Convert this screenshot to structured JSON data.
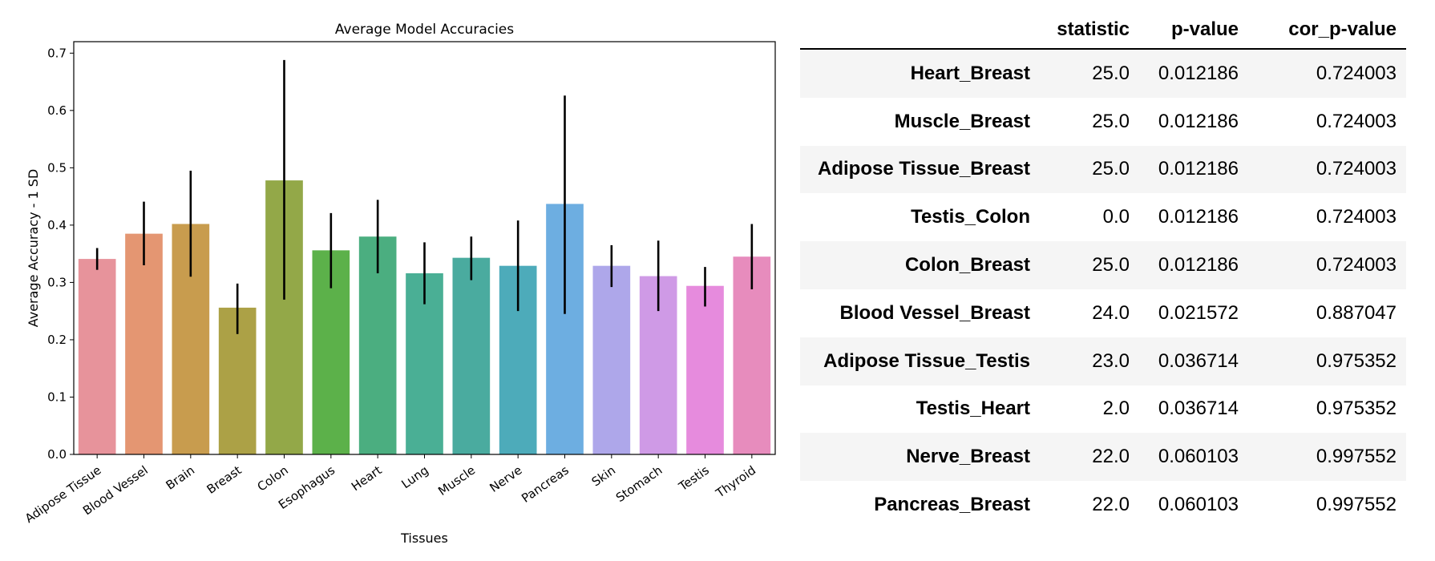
{
  "chart_data": {
    "type": "bar",
    "title": "Average Model Accuracies",
    "xlabel": "Tissues",
    "ylabel": "Average Accuracy - 1 SD",
    "ylim": [
      0,
      0.72
    ],
    "yticks": [
      "0.0",
      "0.1",
      "0.2",
      "0.3",
      "0.4",
      "0.5",
      "0.6",
      "0.7"
    ],
    "grid": false,
    "categories": [
      "Adipose Tissue",
      "Blood Vessel",
      "Brain",
      "Breast",
      "Colon",
      "Esophagus",
      "Heart",
      "Lung",
      "Muscle",
      "Nerve",
      "Pancreas",
      "Skin",
      "Stomach",
      "Testis",
      "Thyroid"
    ],
    "values": [
      0.341,
      0.385,
      0.402,
      0.256,
      0.478,
      0.356,
      0.38,
      0.316,
      0.343,
      0.329,
      0.437,
      0.329,
      0.311,
      0.294,
      0.345
    ],
    "error_low": [
      0.322,
      0.33,
      0.31,
      0.21,
      0.27,
      0.29,
      0.316,
      0.262,
      0.304,
      0.25,
      0.245,
      0.292,
      0.25,
      0.258,
      0.288
    ],
    "error_high": [
      0.36,
      0.441,
      0.495,
      0.298,
      0.688,
      0.421,
      0.444,
      0.37,
      0.38,
      0.408,
      0.626,
      0.365,
      0.373,
      0.327,
      0.402
    ],
    "colors": [
      "#e7939b",
      "#e49672",
      "#c89c4e",
      "#aca146",
      "#93a848",
      "#5cb14a",
      "#4bae80",
      "#4aaf95",
      "#4aab9f",
      "#4dabba",
      "#6daee1",
      "#aea7ea",
      "#cf9ae6",
      "#e68bdd",
      "#e78cbd"
    ]
  },
  "table": {
    "columns": [
      "statistic",
      "p-value",
      "cor_p-value"
    ],
    "rows": [
      {
        "label": "Heart_Breast",
        "statistic": "25.0",
        "p_value": "0.012186",
        "cor_p_value": "0.724003"
      },
      {
        "label": "Muscle_Breast",
        "statistic": "25.0",
        "p_value": "0.012186",
        "cor_p_value": "0.724003"
      },
      {
        "label": "Adipose Tissue_Breast",
        "statistic": "25.0",
        "p_value": "0.012186",
        "cor_p_value": "0.724003"
      },
      {
        "label": "Testis_Colon",
        "statistic": "0.0",
        "p_value": "0.012186",
        "cor_p_value": "0.724003"
      },
      {
        "label": "Colon_Breast",
        "statistic": "25.0",
        "p_value": "0.012186",
        "cor_p_value": "0.724003"
      },
      {
        "label": "Blood Vessel_Breast",
        "statistic": "24.0",
        "p_value": "0.021572",
        "cor_p_value": "0.887047"
      },
      {
        "label": "Adipose Tissue_Testis",
        "statistic": "23.0",
        "p_value": "0.036714",
        "cor_p_value": "0.975352"
      },
      {
        "label": "Testis_Heart",
        "statistic": "2.0",
        "p_value": "0.036714",
        "cor_p_value": "0.975352"
      },
      {
        "label": "Nerve_Breast",
        "statistic": "22.0",
        "p_value": "0.060103",
        "cor_p_value": "0.997552"
      },
      {
        "label": "Pancreas_Breast",
        "statistic": "22.0",
        "p_value": "0.060103",
        "cor_p_value": "0.997552"
      }
    ]
  }
}
